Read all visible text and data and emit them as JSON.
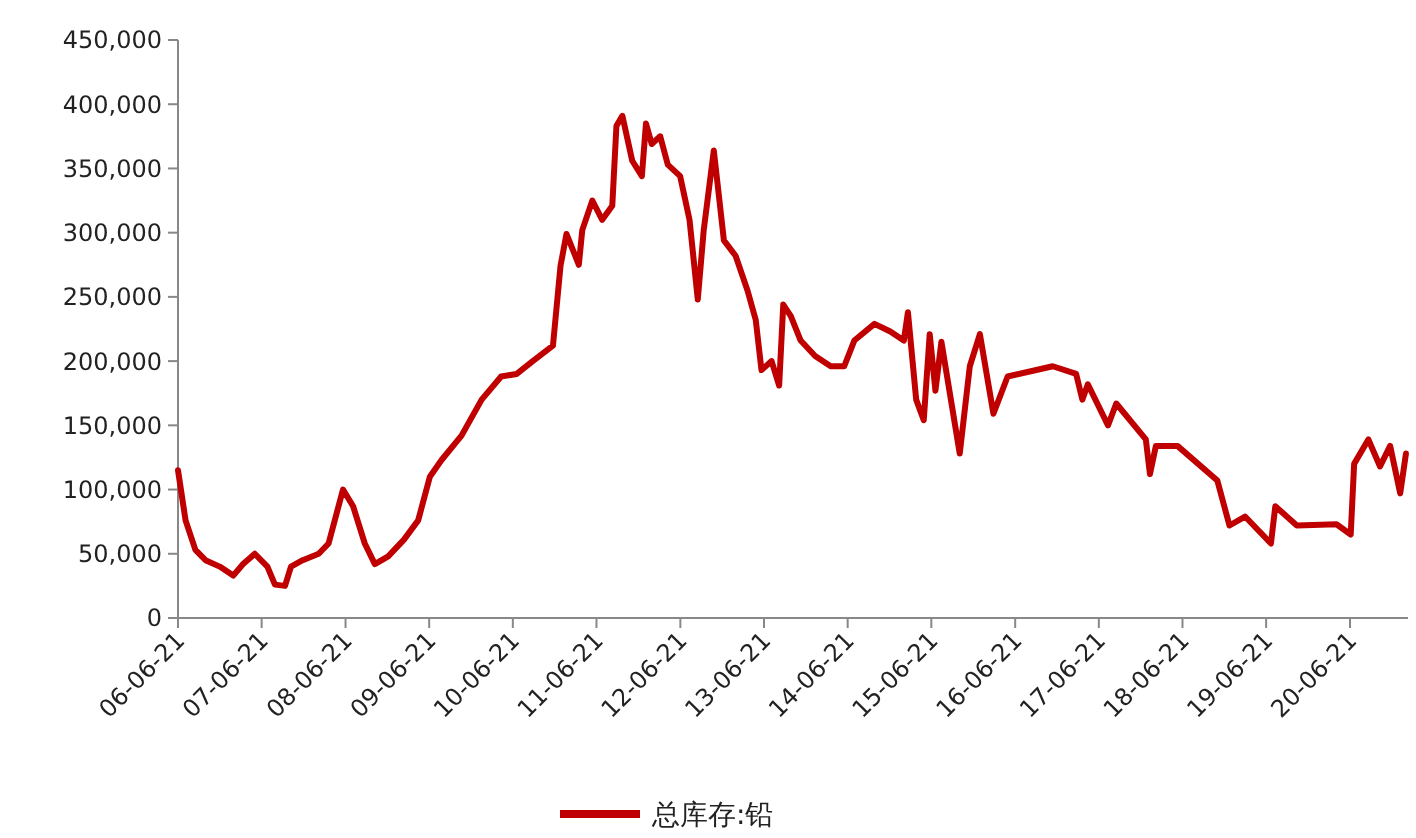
{
  "chart_data": {
    "type": "line",
    "xlim": [
      "2006-06-21",
      "2021-03-01"
    ],
    "xticks": [
      {
        "value": "2006-06-21",
        "label": "06-06-21"
      },
      {
        "value": "2007-06-21",
        "label": "07-06-21"
      },
      {
        "value": "2008-06-21",
        "label": "08-06-21"
      },
      {
        "value": "2009-06-21",
        "label": "09-06-21"
      },
      {
        "value": "2010-06-21",
        "label": "10-06-21"
      },
      {
        "value": "2011-06-21",
        "label": "11-06-21"
      },
      {
        "value": "2012-06-21",
        "label": "12-06-21"
      },
      {
        "value": "2013-06-21",
        "label": "13-06-21"
      },
      {
        "value": "2014-06-21",
        "label": "14-06-21"
      },
      {
        "value": "2015-06-21",
        "label": "15-06-21"
      },
      {
        "value": "2016-06-21",
        "label": "16-06-21"
      },
      {
        "value": "2017-06-21",
        "label": "17-06-21"
      },
      {
        "value": "2018-06-21",
        "label": "18-06-21"
      },
      {
        "value": "2019-06-21",
        "label": "19-06-21"
      },
      {
        "value": "2020-06-21",
        "label": "20-06-21"
      }
    ],
    "ylim": [
      0,
      450000
    ],
    "yticks": [
      0,
      {
        "value": 50000,
        "label": "50,000"
      },
      {
        "value": 100000,
        "label": "100,000"
      },
      {
        "value": 150000,
        "label": "150,000"
      },
      {
        "value": 200000,
        "label": "200,000"
      },
      {
        "value": 250000,
        "label": "250,000"
      },
      {
        "value": 300000,
        "label": "300,000"
      },
      {
        "value": 350000,
        "label": "350,000"
      },
      {
        "value": 400000,
        "label": "400,000"
      },
      {
        "value": 450000,
        "label": "450,000"
      }
    ],
    "x": [
      "2006-06-21",
      "2006-07-24",
      "2006-09-05",
      "2006-10-19",
      "2006-12-20",
      "2007-02-17",
      "2007-04-01",
      "2007-05-22",
      "2007-07-16",
      "2007-08-18",
      "2007-10-01",
      "2007-10-27",
      "2007-12-17",
      "2008-02-25",
      "2008-04-08",
      "2008-06-10",
      "2008-07-24",
      "2008-09-13",
      "2008-10-27",
      "2008-12-24",
      "2009-03-03",
      "2009-05-04",
      "2009-06-24",
      "2009-08-14",
      "2009-11-09",
      "2010-02-05",
      "2010-05-01",
      "2010-07-08",
      "2010-09-16",
      "2010-12-13",
      "2011-01-15",
      "2011-02-10",
      "2011-04-05",
      "2011-04-20",
      "2011-06-03",
      "2011-07-16",
      "2011-08-29",
      "2011-09-16",
      "2011-10-12",
      "2011-11-24",
      "2012-01-05",
      "2012-01-23",
      "2012-02-17",
      "2012-03-25",
      "2012-04-27",
      "2012-06-20",
      "2012-07-31",
      "2012-09-05",
      "2012-10-01",
      "2012-11-14",
      "2012-12-28",
      "2013-02-17",
      "2013-04-10",
      "2013-05-16",
      "2013-06-10",
      "2013-07-24",
      "2013-08-26",
      "2013-09-13",
      "2013-10-16",
      "2013-11-28",
      "2014-01-30",
      "2014-04-08",
      "2014-06-06",
      "2014-07-20",
      "2014-10-16",
      "2014-12-24",
      "2015-02-21",
      "2015-03-11",
      "2015-04-16",
      "2015-05-19",
      "2015-06-14",
      "2015-07-09",
      "2015-08-04",
      "2015-10-23",
      "2015-12-06",
      "2016-01-19",
      "2016-03-18",
      "2016-05-19",
      "2016-12-02",
      "2017-03-14",
      "2017-04-10",
      "2017-05-04",
      "2017-07-31",
      "2017-09-05",
      "2018-01-12",
      "2018-01-30",
      "2018-02-25",
      "2018-05-30",
      "2018-11-20",
      "2019-01-12",
      "2019-03-21",
      "2019-07-12",
      "2019-07-31",
      "2019-11-02",
      "2020-04-23",
      "2020-06-24",
      "2020-07-09",
      "2020-09-09",
      "2020-10-30",
      "2020-12-13",
      "2021-01-26",
      "2021-02-20"
    ],
    "series": [
      {
        "name": "总库存:铅",
        "color": "#c00000",
        "values": [
          115000,
          76000,
          53000,
          45000,
          40000,
          33000,
          42000,
          50000,
          40000,
          26000,
          25000,
          40000,
          45000,
          50000,
          58000,
          100000,
          87000,
          58000,
          42000,
          48000,
          61000,
          76000,
          110000,
          123000,
          142000,
          170000,
          188000,
          190000,
          200000,
          212000,
          274000,
          299000,
          275000,
          302000,
          325000,
          310000,
          321000,
          383000,
          391000,
          356000,
          344000,
          385000,
          369000,
          375000,
          353000,
          344000,
          310000,
          248000,
          302000,
          364000,
          294000,
          282000,
          255000,
          232000,
          193000,
          200000,
          181000,
          244000,
          235000,
          216000,
          204000,
          196000,
          196000,
          216000,
          229000,
          223000,
          216000,
          238000,
          170000,
          154000,
          221000,
          177000,
          215000,
          128000,
          196000,
          221000,
          159000,
          188000,
          196000,
          190000,
          170000,
          182000,
          150000,
          167000,
          139000,
          112000,
          134000,
          134000,
          107000,
          72000,
          79000,
          58000,
          87000,
          72000,
          73000,
          65000,
          120000,
          139000,
          118000,
          134000,
          97000,
          128000
        ]
      }
    ],
    "legend": "bottom",
    "marker": "none",
    "line_style": "solid"
  }
}
